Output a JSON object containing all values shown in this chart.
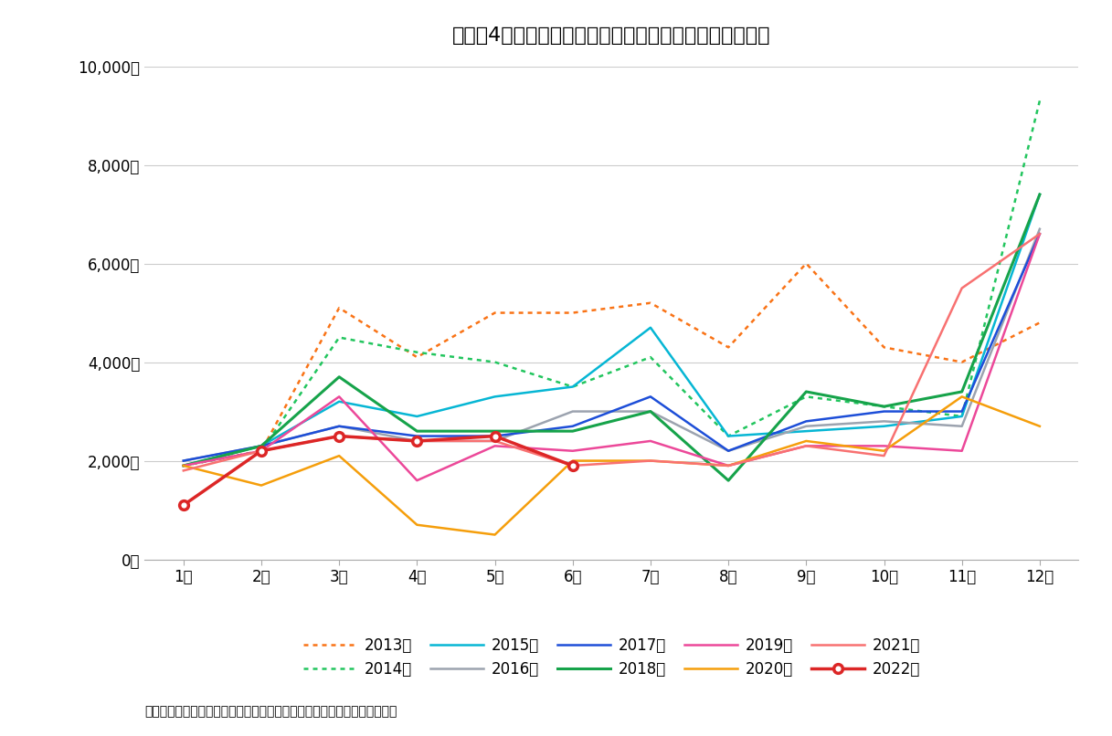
{
  "title": "図表－4　首都圏のマンション新規発売戸数（暦年比較）",
  "xlabel_values": [
    "1月",
    "2月",
    "3月",
    "4月",
    "5月",
    "6月",
    "7月",
    "8月",
    "9月",
    "10月",
    "11月",
    "12月"
  ],
  "ylabel_ticks": [
    0,
    2000,
    4000,
    6000,
    8000,
    10000
  ],
  "ylabel_labels": [
    "0戸",
    "2,000戸",
    "4,000戸",
    "6,000戸",
    "8,000戸",
    "10,000戸"
  ],
  "source_text": "（出所）不動産経済研究所の公表データを基にニッセイ基礎研究所が作成",
  "series": {
    "2013": {
      "color": "#F97316",
      "linestyle": "dotted",
      "linewidth": 1.8,
      "marker": null,
      "markersize": 0,
      "values": [
        1900,
        2200,
        5100,
        4100,
        5000,
        5000,
        5200,
        4300,
        6000,
        4300,
        4000,
        4800
      ]
    },
    "2014": {
      "color": "#22C55E",
      "linestyle": "dotted",
      "linewidth": 1.8,
      "marker": null,
      "markersize": 0,
      "values": [
        1900,
        2200,
        4500,
        4200,
        4000,
        3500,
        4100,
        2500,
        3300,
        3100,
        2900,
        9300
      ]
    },
    "2015": {
      "color": "#06B6D4",
      "linestyle": "solid",
      "linewidth": 1.8,
      "marker": null,
      "markersize": 0,
      "values": [
        1900,
        2300,
        3200,
        2900,
        3300,
        3500,
        4700,
        2500,
        2600,
        2700,
        2900,
        7400
      ]
    },
    "2016": {
      "color": "#9CA3AF",
      "linestyle": "solid",
      "linewidth": 1.8,
      "marker": null,
      "markersize": 0,
      "values": [
        2000,
        2300,
        2700,
        2400,
        2400,
        3000,
        3000,
        2200,
        2700,
        2800,
        2700,
        6700
      ]
    },
    "2017": {
      "color": "#1D4ED8",
      "linestyle": "solid",
      "linewidth": 1.8,
      "marker": null,
      "markersize": 0,
      "values": [
        2000,
        2300,
        2700,
        2500,
        2500,
        2700,
        3300,
        2200,
        2800,
        3000,
        3000,
        6600
      ]
    },
    "2018": {
      "color": "#16A34A",
      "linestyle": "solid",
      "linewidth": 2.2,
      "marker": null,
      "markersize": 0,
      "values": [
        1900,
        2300,
        3700,
        2600,
        2600,
        2600,
        3000,
        1600,
        3400,
        3100,
        3400,
        7400
      ]
    },
    "2019": {
      "color": "#EC4899",
      "linestyle": "solid",
      "linewidth": 1.8,
      "marker": null,
      "markersize": 0,
      "values": [
        1900,
        2200,
        3300,
        1600,
        2300,
        2200,
        2400,
        1900,
        2300,
        2300,
        2200,
        6600
      ]
    },
    "2020": {
      "color": "#F59E0B",
      "linestyle": "solid",
      "linewidth": 1.8,
      "marker": null,
      "markersize": 0,
      "values": [
        1900,
        1500,
        2100,
        700,
        500,
        2000,
        2000,
        1900,
        2400,
        2200,
        3300,
        2700
      ]
    },
    "2021": {
      "color": "#F87171",
      "linestyle": "solid",
      "linewidth": 1.8,
      "marker": null,
      "markersize": 0,
      "values": [
        1800,
        2200,
        2500,
        2400,
        2400,
        1900,
        2000,
        1900,
        2300,
        2100,
        5500,
        6600
      ]
    },
    "2022": {
      "color": "#DC2626",
      "linestyle": "solid",
      "linewidth": 2.5,
      "marker": "o",
      "markersize": 7,
      "markerfacecolor": "white",
      "markeredgewidth": 2.5,
      "values": [
        1100,
        2200,
        2500,
        2400,
        2500,
        1900,
        null,
        null,
        null,
        null,
        null,
        null
      ]
    }
  },
  "legend_order": [
    "2013",
    "2014",
    "2015",
    "2016",
    "2017",
    "2018",
    "2019",
    "2020",
    "2021",
    "2022"
  ],
  "legend_labels": {
    "2013": "2013年",
    "2014": "2014年",
    "2015": "2015年",
    "2016": "2016年",
    "2017": "2017年",
    "2018": "2018年",
    "2019": "2019年",
    "2020": "2020年",
    "2021": "2021年",
    "2022": "2022年"
  },
  "ylim": [
    0,
    10000
  ],
  "background_color": "#ffffff"
}
